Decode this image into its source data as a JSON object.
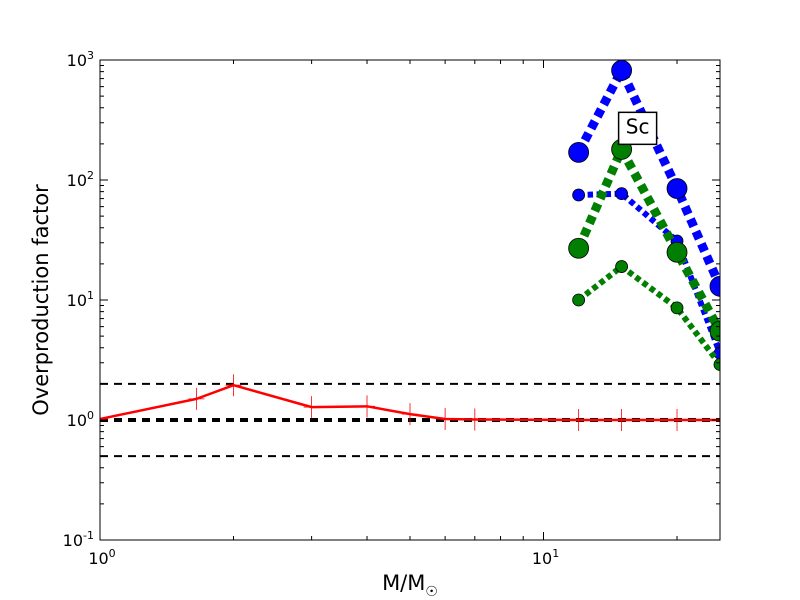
{
  "chart_data": {
    "type": "line",
    "title": "",
    "xlabel": "M/M",
    "xlabel_sub": "☉",
    "ylabel": "Overproduction factor",
    "xscale": "log",
    "yscale": "log",
    "xlim": [
      1,
      25
    ],
    "ylim": [
      0.1,
      1000
    ],
    "grid": false,
    "x_ticks": [
      {
        "value": 1,
        "base": "10",
        "exp": "0"
      },
      {
        "value": 10,
        "base": "10",
        "exp": "1"
      }
    ],
    "y_ticks": [
      {
        "value": 0.1,
        "base": "10",
        "exp": "-1"
      },
      {
        "value": 1,
        "base": "10",
        "exp": "0"
      },
      {
        "value": 10,
        "base": "10",
        "exp": "1"
      },
      {
        "value": 100,
        "base": "10",
        "exp": "2"
      },
      {
        "value": 1000,
        "base": "10",
        "exp": "3"
      }
    ],
    "reference_lines": [
      {
        "y": 2,
        "style": "dashed",
        "color": "#000000",
        "width": 2
      },
      {
        "y": 1,
        "style": "dashed",
        "color": "#000000",
        "width": 4
      },
      {
        "y": 0.5,
        "style": "dashed",
        "color": "#000000",
        "width": 2
      }
    ],
    "annotation": {
      "text": "Sc",
      "x": 16.3,
      "y": 280
    },
    "series": [
      {
        "color": "#ff0000",
        "style": "solid",
        "width": 2.5,
        "marker": "plus",
        "x": [
          1,
          1.65,
          2,
          3,
          4,
          5,
          6,
          7,
          12,
          15,
          20,
          25
        ],
        "y": [
          1.02,
          1.5,
          1.95,
          1.28,
          1.3,
          1.12,
          1.02,
          1.01,
          1.0,
          1.0,
          1.0,
          1.0
        ]
      },
      {
        "color": "#0000ff",
        "style": "dotted",
        "width": 9,
        "marker": "circle",
        "marker_size": 10,
        "x": [
          12,
          15,
          20,
          25
        ],
        "y": [
          170,
          820,
          85,
          13
        ]
      },
      {
        "color": "#0000ff",
        "style": "dotted",
        "width": 6,
        "marker": "circle",
        "marker_size": 6,
        "x": [
          12,
          15,
          20,
          25
        ],
        "y": [
          75,
          77,
          31,
          3.6
        ]
      },
      {
        "color": "#007f00",
        "style": "dotted",
        "width": 9,
        "marker": "circle",
        "marker_size": 10,
        "x": [
          12,
          15,
          20,
          25
        ],
        "y": [
          27,
          180,
          25,
          5.5
        ]
      },
      {
        "color": "#007f00",
        "style": "dotted",
        "width": 6,
        "marker": "circle",
        "marker_size": 6,
        "x": [
          12,
          15,
          20,
          25
        ],
        "y": [
          10,
          19,
          8.6,
          2.9
        ]
      }
    ]
  }
}
